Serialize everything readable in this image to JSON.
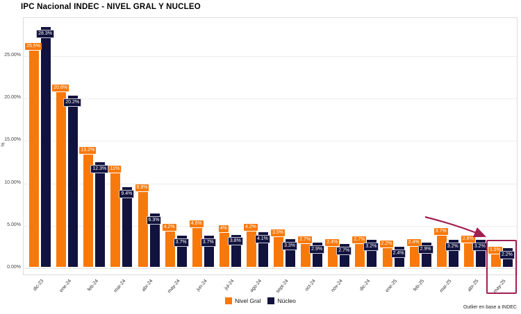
{
  "title": "IPC Nacional INDEC - NIVEL GRAL Y NUCLEO",
  "footer": "Outlier en base a INDEC",
  "colors": {
    "nivel_gral": "#f8790b",
    "nucleo": "#12123e",
    "annotation": "#a21e52",
    "grid": "#ececec"
  },
  "chart_data": {
    "type": "bar",
    "title": "IPC Nacional INDEC - NIVEL GRAL Y NUCLEO",
    "xlabel": "",
    "ylabel": "%",
    "ylim": [
      0,
      29.5
    ],
    "grid": true,
    "legend_position": "bottom",
    "categories": [
      "dic-23",
      "ene-24",
      "feb-24",
      "mar-24",
      "abr-24",
      "may-24",
      "jun-24",
      "jul-24",
      "ago-24",
      "sept-24",
      "oct-24",
      "nov-24",
      "dic-24",
      "ene-25",
      "feb-25",
      "mar-25",
      "abr-25",
      "may-25"
    ],
    "yticks": [
      "0.00%",
      "5.00%",
      "10.00%",
      "15.00%",
      "20.00%",
      "25.00%"
    ],
    "ytick_values": [
      0,
      5,
      10,
      15,
      20,
      25
    ],
    "series": [
      {
        "name": "Nivel Gral",
        "color": "#f8790b",
        "values": [
          25.5,
          20.6,
          13.2,
          11,
          8.8,
          4.2,
          4.6,
          4,
          4.2,
          3.5,
          2.7,
          2.4,
          2.7,
          2.2,
          2.4,
          3.7,
          2.8,
          1.5
        ],
        "labels": [
          "25.5%",
          "20.6%",
          "13.2%",
          "11%",
          "8.8%",
          "4.2%",
          "4.6%",
          "4%",
          "4.2%",
          "3.5%",
          "2.7%",
          "2.4%",
          "2.7%",
          "2.2%",
          "2.4%",
          "3.7%",
          "2.8%",
          "1.5%"
        ]
      },
      {
        "name": "Núcleo",
        "color": "#12123e",
        "values": [
          28.3,
          20.2,
          12.3,
          9.4,
          6.3,
          3.7,
          3.7,
          3.8,
          4.1,
          3.3,
          2.9,
          2.7,
          3.2,
          2.4,
          2.9,
          3.2,
          3.2,
          2.2
        ],
        "labels": [
          "28.3%",
          "20.2%",
          "12.3%",
          "9.4%",
          "6.3%",
          "3.7%",
          "3.7%",
          "3.8%",
          "4.1%",
          "3.3%",
          "2.9%",
          "2.7%",
          "3.2%",
          "2.4%",
          "2.9%",
          "3.2%",
          "3.2%",
          "2.2%"
        ]
      }
    ],
    "annotation": {
      "highlight_category": "may-25",
      "arrow_to_highlight": true
    }
  }
}
